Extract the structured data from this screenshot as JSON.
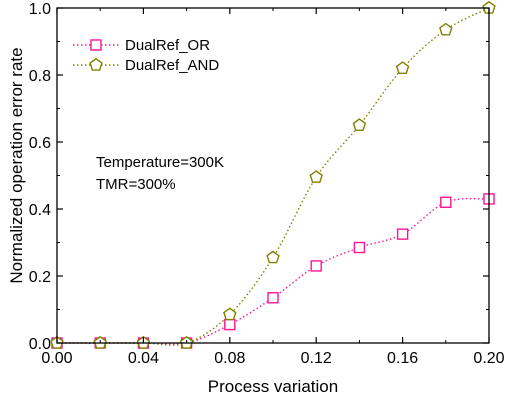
{
  "chart_data": {
    "type": "line",
    "xlabel": "Process variation",
    "ylabel": "Normalized operation error rate",
    "xlim": [
      0.0,
      0.2
    ],
    "ylim": [
      0.0,
      1.0
    ],
    "xticks": [
      0.0,
      0.04,
      0.08,
      0.12,
      0.16,
      0.2
    ],
    "xtick_labels": [
      "0.00",
      "0.04",
      "0.08",
      "0.12",
      "0.16",
      "0.20"
    ],
    "yticks": [
      0.0,
      0.2,
      0.4,
      0.6,
      0.8,
      1.0
    ],
    "ytick_labels": [
      "0.0",
      "0.2",
      "0.4",
      "0.6",
      "0.8",
      "1.0"
    ],
    "legend_position": "top-left",
    "grid": false,
    "annotations": [
      "Temperature=300K",
      "TMR=300%"
    ],
    "series": [
      {
        "name": "DualRef_OR",
        "color": "#ff1493",
        "marker": "square",
        "line_style": "dotted",
        "x": [
          0.0,
          0.02,
          0.04,
          0.06,
          0.08,
          0.1,
          0.12,
          0.14,
          0.16,
          0.18,
          0.2
        ],
        "y": [
          0.0,
          0.0,
          0.0,
          0.0,
          0.055,
          0.135,
          0.23,
          0.285,
          0.325,
          0.42,
          0.43
        ]
      },
      {
        "name": "DualRef_AND",
        "color": "#808000",
        "marker": "pentagon",
        "line_style": "dotted",
        "x": [
          0.0,
          0.02,
          0.04,
          0.06,
          0.08,
          0.1,
          0.12,
          0.14,
          0.16,
          0.18,
          0.2
        ],
        "y": [
          0.0,
          0.0,
          0.0,
          0.0,
          0.085,
          0.255,
          0.495,
          0.65,
          0.82,
          0.935,
          1.0
        ]
      }
    ]
  }
}
